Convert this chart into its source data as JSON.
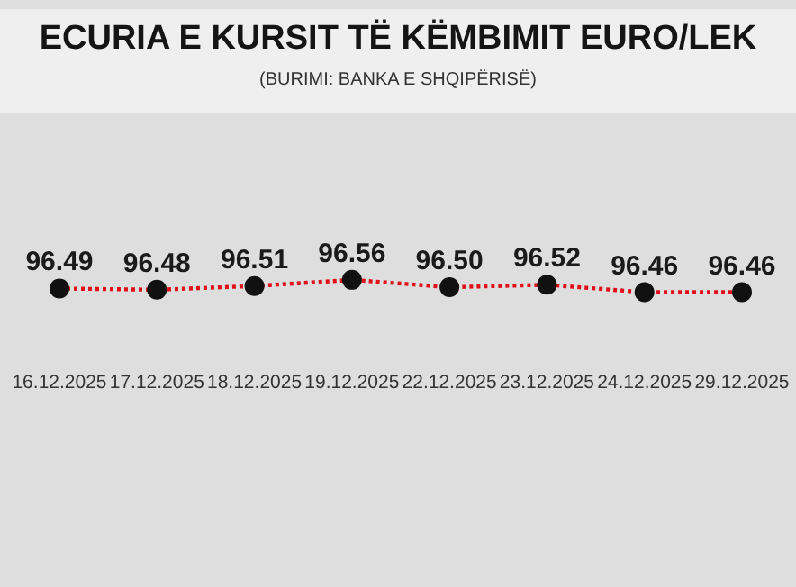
{
  "chart_data": {
    "type": "line",
    "title": "ECURIA E KURSIT TË KËMBIMIT EURO/LEK",
    "subtitle": "(BURIMI: BANKA E SHQIPËRISË)",
    "categories": [
      "16.12.2025",
      "17.12.2025",
      "18.12.2025",
      "19.12.2025",
      "22.12.2025",
      "23.12.2025",
      "24.12.2025",
      "29.12.2025"
    ],
    "values": [
      96.49,
      96.48,
      96.51,
      96.56,
      96.5,
      96.52,
      96.46,
      96.46
    ],
    "value_labels": [
      "96.49",
      "96.48",
      "96.51",
      "96.56",
      "96.50",
      "96.52",
      "96.46",
      "96.46"
    ],
    "color": "#e0101a",
    "marker": "circle",
    "line_style": "dotted"
  }
}
